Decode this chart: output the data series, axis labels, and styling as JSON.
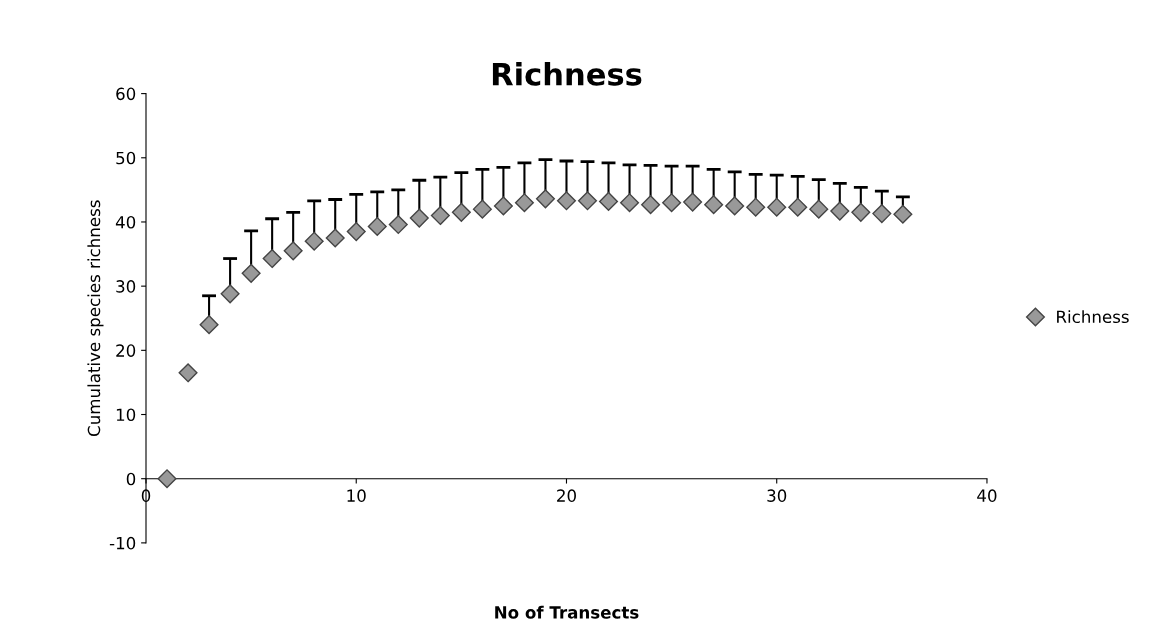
{
  "chart_data": {
    "type": "scatter",
    "title": "Richness",
    "xlabel": "No of Transects",
    "ylabel": "Cumulative species richness",
    "x": [
      1,
      2,
      3,
      4,
      5,
      6,
      7,
      8,
      9,
      10,
      11,
      12,
      13,
      14,
      15,
      16,
      17,
      18,
      19,
      20,
      21,
      22,
      23,
      24,
      25,
      26,
      27,
      28,
      29,
      30,
      31,
      32,
      33,
      34,
      35,
      36
    ],
    "series": [
      {
        "name": "Richness",
        "color": "#999999",
        "values": [
          0,
          16.5,
          24,
          28.8,
          32,
          34.3,
          35.5,
          37,
          37.5,
          38.5,
          39.3,
          39.6,
          40.6,
          41,
          41.5,
          42,
          42.5,
          43,
          43.6,
          43.3,
          43.3,
          43.2,
          43,
          42.7,
          43,
          43.1,
          42.7,
          42.5,
          42.3,
          42.3,
          42.3,
          42,
          41.7,
          41.5,
          41.3,
          41.2
        ],
        "errors": [
          null,
          null,
          [
            24,
            28.5
          ],
          [
            28.8,
            34.3
          ],
          [
            32,
            38.6
          ],
          [
            34.3,
            40.5
          ],
          [
            35.5,
            41.5
          ],
          [
            37,
            43.3
          ],
          [
            37.5,
            43.5
          ],
          [
            38.5,
            44.3
          ],
          [
            39.3,
            44.7
          ],
          [
            39.6,
            45
          ],
          [
            40.6,
            46.5
          ],
          [
            41,
            47
          ],
          [
            41.5,
            47.7
          ],
          [
            42,
            48.2
          ],
          [
            42.5,
            48.5
          ],
          [
            43,
            49.2
          ],
          [
            43.6,
            49.7
          ],
          [
            43.3,
            49.5
          ],
          [
            43.3,
            49.4
          ],
          [
            43.2,
            49.2
          ],
          [
            43,
            48.9
          ],
          [
            42.7,
            48.8
          ],
          [
            43,
            48.7
          ],
          [
            43.1,
            48.7
          ],
          [
            42.7,
            48.2
          ],
          [
            42.5,
            47.8
          ],
          [
            42.3,
            47.4
          ],
          [
            42.3,
            47.3
          ],
          [
            42.3,
            47.1
          ],
          [
            42,
            46.6
          ],
          [
            41.7,
            46
          ],
          [
            41.5,
            45.4
          ],
          [
            41.3,
            44.8
          ],
          [
            41.2,
            43.9
          ]
        ]
      }
    ],
    "xlim": [
      0,
      40
    ],
    "xticks": [
      0,
      10,
      20,
      30,
      40
    ],
    "ylim": [
      -10,
      60
    ],
    "yticks": [
      -10,
      0,
      10,
      20,
      30,
      40,
      50,
      60
    ],
    "marker": "diamond",
    "legend": "right",
    "grid": false
  }
}
